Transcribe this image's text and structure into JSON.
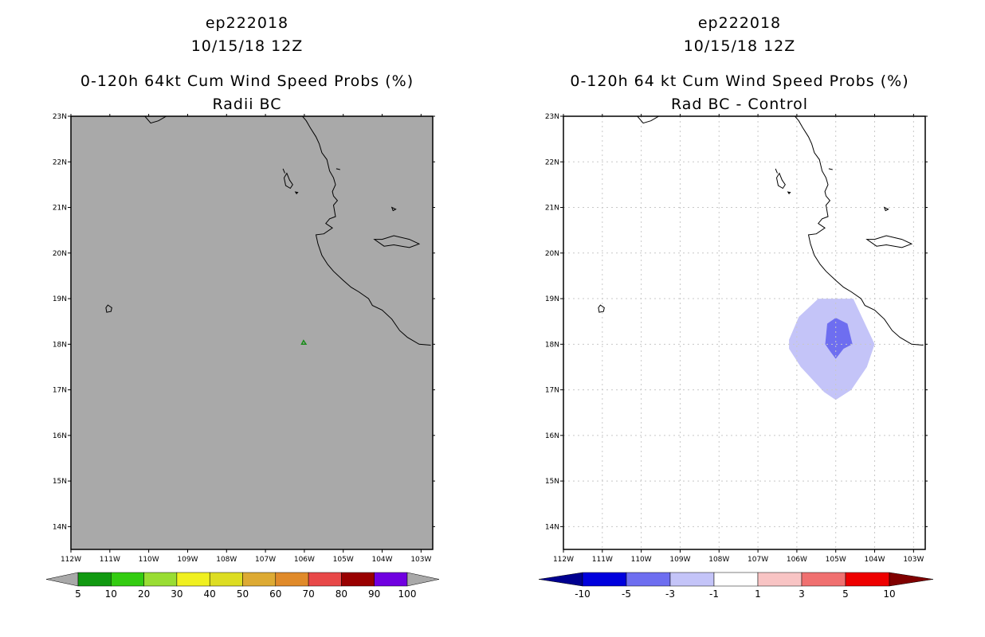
{
  "left_panel": {
    "title_lines": [
      "ep222018",
      "10/15/18 12Z",
      "0-120h 64kt Cum Wind Speed Probs (%)",
      "Radii BC"
    ]
  },
  "right_panel": {
    "title_lines": [
      "ep222018",
      "10/15/18 12Z",
      "0-120h 64 kt Cum Wind Speed Probs (%)",
      "Rad BC - Control"
    ]
  },
  "colors": {
    "gray_background": "#a9a9a9",
    "grid": "#c8c8c8",
    "coast": "#000000",
    "green_contour": "#1a8c1a"
  },
  "chart_data": [
    {
      "type": "heatmap",
      "name": "left-map",
      "title": "0-120h 64kt Cum Wind Speed Probs (%) - Radii BC",
      "lon_range": [
        -112,
        -102.7
      ],
      "lat_range": [
        13.5,
        23
      ],
      "x_tick_values": [
        -112,
        -111,
        -110,
        -109,
        -108,
        -107,
        -106,
        -105,
        -104,
        -103
      ],
      "x_tick_labels": [
        "112W",
        "111W",
        "110W",
        "109W",
        "108W",
        "107W",
        "106W",
        "105W",
        "104W",
        "103W"
      ],
      "y_tick_values": [
        14,
        15,
        16,
        17,
        18,
        19,
        20,
        21,
        22,
        23
      ],
      "y_tick_labels": [
        "14N",
        "15N",
        "16N",
        "17N",
        "18N",
        "19N",
        "20N",
        "21N",
        "22N",
        "23N"
      ],
      "grid": false,
      "field_note": "gray = below 5%",
      "contour_points": [
        {
          "lon": -106.02,
          "lat": 18.08
        },
        {
          "lon": -105.96,
          "lat": 18.0
        },
        {
          "lon": -106.07,
          "lat": 18.0
        }
      ],
      "colorbar": {
        "labels": [
          "5",
          "10",
          "20",
          "30",
          "40",
          "50",
          "60",
          "70",
          "80",
          "90",
          "100"
        ],
        "colors": [
          "#119911",
          "#33cc11",
          "#99dd33",
          "#f0f020",
          "#dddd22",
          "#ddaa33",
          "#e08a2a",
          "#e84848",
          "#990000",
          "#7000e0"
        ],
        "end_arrow_color": "#a9a9a9"
      }
    },
    {
      "type": "heatmap",
      "name": "right-map",
      "title": "0-120h 64 kt Cum Wind Speed Probs (%) - Rad BC - Control",
      "lon_range": [
        -112,
        -102.7
      ],
      "lat_range": [
        13.5,
        23
      ],
      "x_tick_values": [
        -112,
        -111,
        -110,
        -109,
        -108,
        -107,
        -106,
        -105,
        -104,
        -103
      ],
      "x_tick_labels": [
        "112W",
        "111W",
        "110W",
        "109W",
        "108W",
        "107W",
        "106W",
        "105W",
        "104W",
        "103W"
      ],
      "y_tick_values": [
        14,
        15,
        16,
        17,
        18,
        19,
        20,
        21,
        22,
        23
      ],
      "y_tick_labels": [
        "14N",
        "15N",
        "16N",
        "17N",
        "18N",
        "19N",
        "20N",
        "21N",
        "22N",
        "23N"
      ],
      "grid": true,
      "contours": [
        {
          "level": "-3 to -1",
          "color": "#c4c4f8",
          "points": [
            {
              "lon": -105.45,
              "lat": 19.0
            },
            {
              "lon": -104.55,
              "lat": 19.0
            },
            {
              "lon": -104.0,
              "lat": 18.0
            },
            {
              "lon": -104.2,
              "lat": 17.5
            },
            {
              "lon": -104.6,
              "lat": 17.0
            },
            {
              "lon": -105.0,
              "lat": 16.78
            },
            {
              "lon": -105.3,
              "lat": 16.95
            },
            {
              "lon": -105.9,
              "lat": 17.5
            },
            {
              "lon": -106.2,
              "lat": 17.9
            },
            {
              "lon": -106.2,
              "lat": 18.1
            },
            {
              "lon": -105.95,
              "lat": 18.6
            }
          ]
        },
        {
          "level": "-5 to -3",
          "color": "#6e6ef0",
          "points": [
            {
              "lon": -105.0,
              "lat": 18.58
            },
            {
              "lon": -104.7,
              "lat": 18.45
            },
            {
              "lon": -104.57,
              "lat": 18.0
            },
            {
              "lon": -104.8,
              "lat": 17.9
            },
            {
              "lon": -105.0,
              "lat": 17.68
            },
            {
              "lon": -105.15,
              "lat": 17.85
            },
            {
              "lon": -105.27,
              "lat": 18.0
            },
            {
              "lon": -105.22,
              "lat": 18.45
            }
          ]
        }
      ],
      "colorbar": {
        "labels": [
          "-10",
          "-5",
          "-3",
          "-1",
          "1",
          "3",
          "5",
          "10"
        ],
        "colors": [
          "#0000dd",
          "#6e6ef0",
          "#c4c4f8",
          "#ffffff",
          "#f8c4c4",
          "#f07070",
          "#ee0000"
        ],
        "left_arrow_color": "#000090",
        "right_arrow_color": "#800000"
      }
    }
  ]
}
